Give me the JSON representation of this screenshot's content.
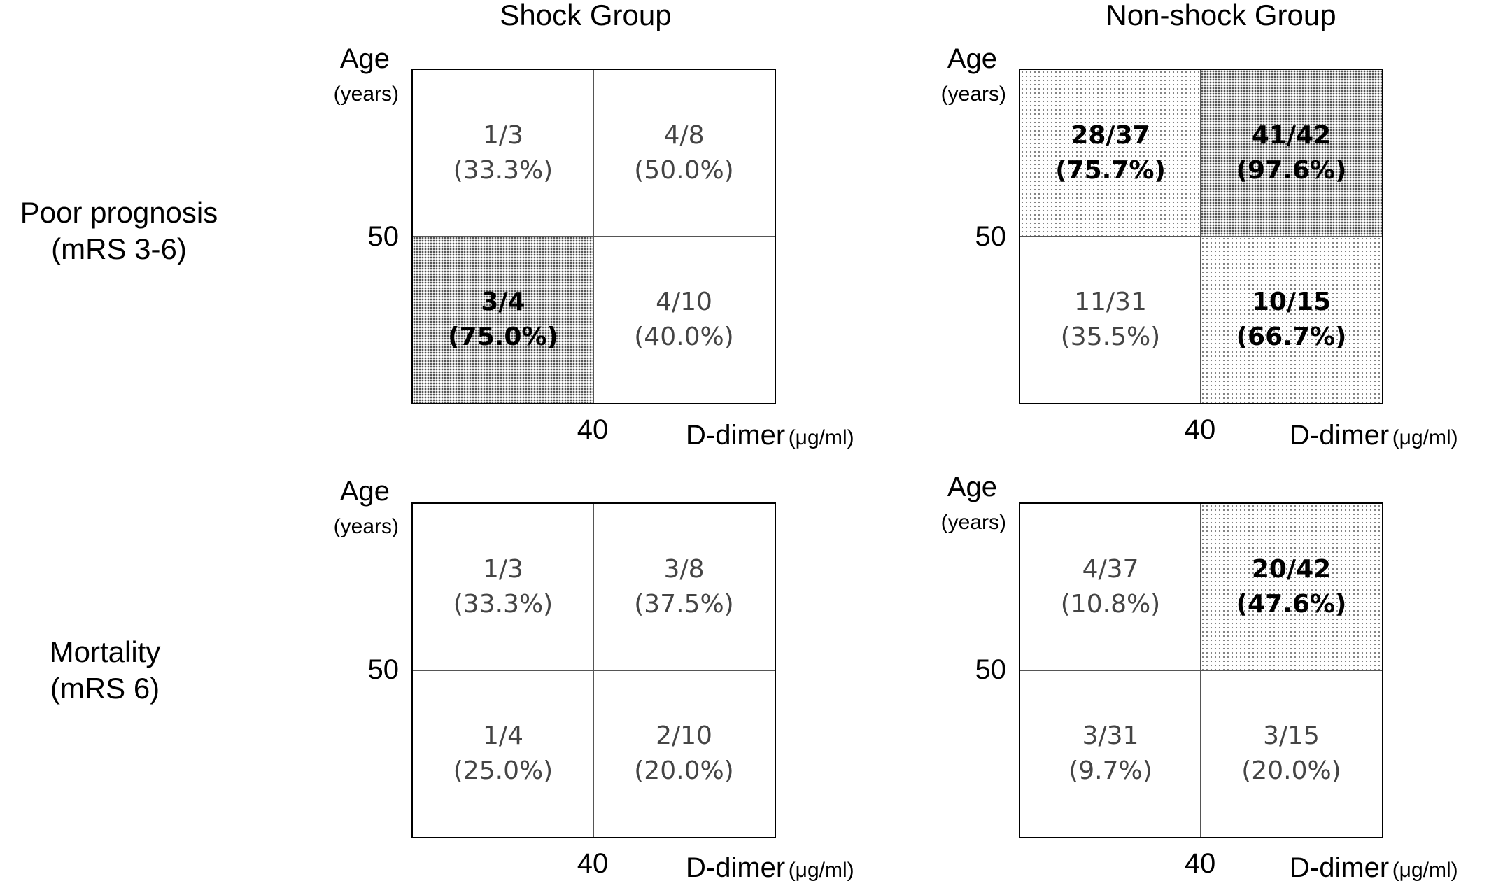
{
  "headers": {
    "shock": "Shock Group",
    "nonshock": "Non-shock Group"
  },
  "rows": {
    "poor": {
      "line1": "Poor prognosis",
      "line2": "(mRS 3-6)"
    },
    "mortality": {
      "line1": "Mortality",
      "line2": "(mRS 6)"
    }
  },
  "axes": {
    "y_title": "Age",
    "y_unit": "(years)",
    "y_threshold": "50",
    "x_title": "D-dimer",
    "x_unit": "(μg/ml)",
    "x_threshold": "40"
  },
  "panels": {
    "poor_shock": {
      "tl": {
        "frac": "1/3",
        "pct": "(33.3%)",
        "highlight": false
      },
      "tr": {
        "frac": "4/8",
        "pct": "(50.0%)",
        "highlight": false
      },
      "bl": {
        "frac": "3/4",
        "pct": "(75.0%)",
        "highlight": true
      },
      "br": {
        "frac": "4/10",
        "pct": "(40.0%)",
        "highlight": false
      }
    },
    "poor_nonshock": {
      "tl": {
        "frac": "28/37",
        "pct": "(75.7%)",
        "highlight": true
      },
      "tr": {
        "frac": "41/42",
        "pct": "(97.6%)",
        "highlight": true
      },
      "bl": {
        "frac": "11/31",
        "pct": "(35.5%)",
        "highlight": false
      },
      "br": {
        "frac": "10/15",
        "pct": "(66.7%)",
        "highlight": true
      }
    },
    "mort_shock": {
      "tl": {
        "frac": "1/3",
        "pct": "(33.3%)",
        "highlight": false
      },
      "tr": {
        "frac": "3/8",
        "pct": "(37.5%)",
        "highlight": false
      },
      "bl": {
        "frac": "1/4",
        "pct": "(25.0%)",
        "highlight": false
      },
      "br": {
        "frac": "2/10",
        "pct": "(20.0%)",
        "highlight": false
      }
    },
    "mort_nonshock": {
      "tl": {
        "frac": "4/37",
        "pct": "(10.8%)",
        "highlight": false
      },
      "tr": {
        "frac": "20/42",
        "pct": "(47.6%)",
        "highlight": true
      },
      "bl": {
        "frac": "3/31",
        "pct": "(9.7%)",
        "highlight": false
      },
      "br": {
        "frac": "3/15",
        "pct": "(20.0%)",
        "highlight": false
      }
    }
  }
}
